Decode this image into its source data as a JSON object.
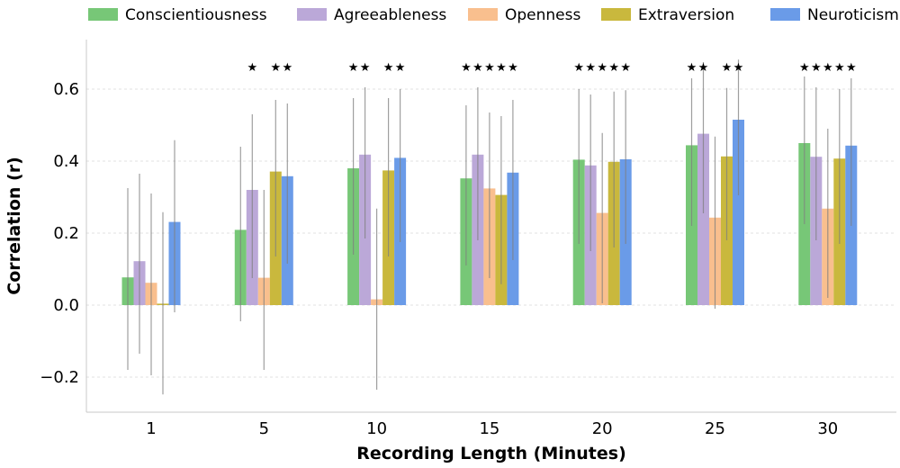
{
  "chart_data": {
    "type": "bar",
    "xlabel": "Recording Length (Minutes)",
    "ylabel": "Correlation (r)",
    "ylim": [
      -0.3,
      0.72
    ],
    "yticks": [
      "−0.2",
      "0.0",
      "0.2",
      "0.4",
      "0.6"
    ],
    "ytick_values": [
      -0.2,
      0.0,
      0.2,
      0.4,
      0.6
    ],
    "categories": [
      "1",
      "5",
      "10",
      "15",
      "20",
      "25",
      "30"
    ],
    "grid": true,
    "legend_position": "top",
    "significance_marker": "★",
    "series": [
      {
        "name": "Conscientiousness",
        "color": "#77c777",
        "values": [
          0.077,
          0.209,
          0.38,
          0.352,
          0.404,
          0.444,
          0.45
        ],
        "err_low": [
          -0.18,
          -0.045,
          0.14,
          0.11,
          0.17,
          0.22,
          0.225
        ],
        "err_high": [
          0.325,
          0.44,
          0.575,
          0.555,
          0.6,
          0.63,
          0.635
        ],
        "significant": [
          false,
          false,
          true,
          true,
          true,
          true,
          true
        ]
      },
      {
        "name": "Agreeableness",
        "color": "#bba8d8",
        "values": [
          0.122,
          0.32,
          0.418,
          0.418,
          0.388,
          0.476,
          0.412
        ],
        "err_low": [
          -0.135,
          0.075,
          0.185,
          0.18,
          0.15,
          0.255,
          0.18
        ],
        "err_high": [
          0.365,
          0.53,
          0.605,
          0.605,
          0.585,
          0.675,
          0.605
        ],
        "significant": [
          false,
          true,
          true,
          true,
          true,
          true,
          true
        ]
      },
      {
        "name": "Openness",
        "color": "#f9bf8e",
        "values": [
          0.062,
          0.076,
          0.016,
          0.324,
          0.256,
          0.243,
          0.268
        ],
        "err_low": [
          -0.195,
          -0.18,
          -0.235,
          0.075,
          0.005,
          -0.01,
          0.02
        ],
        "err_high": [
          0.31,
          0.32,
          0.268,
          0.535,
          0.478,
          0.468,
          0.49
        ],
        "significant": [
          false,
          false,
          false,
          true,
          true,
          false,
          true
        ]
      },
      {
        "name": "Extraversion",
        "color": "#c9b83d",
        "values": [
          0.004,
          0.371,
          0.374,
          0.306,
          0.398,
          0.413,
          0.407
        ],
        "err_low": [
          -0.248,
          0.135,
          0.135,
          0.058,
          0.16,
          0.18,
          0.17
        ],
        "err_high": [
          0.258,
          0.57,
          0.575,
          0.525,
          0.593,
          0.603,
          0.6
        ],
        "significant": [
          false,
          true,
          true,
          true,
          true,
          true,
          true
        ]
      },
      {
        "name": "Neuroticism",
        "color": "#6a9be8",
        "values": [
          0.231,
          0.358,
          0.409,
          0.368,
          0.405,
          0.515,
          0.443
        ],
        "err_low": [
          -0.02,
          0.115,
          0.175,
          0.125,
          0.17,
          0.305,
          0.22
        ],
        "err_high": [
          0.458,
          0.56,
          0.6,
          0.57,
          0.597,
          0.682,
          0.63
        ],
        "significant": [
          false,
          true,
          true,
          true,
          true,
          true,
          true
        ]
      }
    ]
  }
}
